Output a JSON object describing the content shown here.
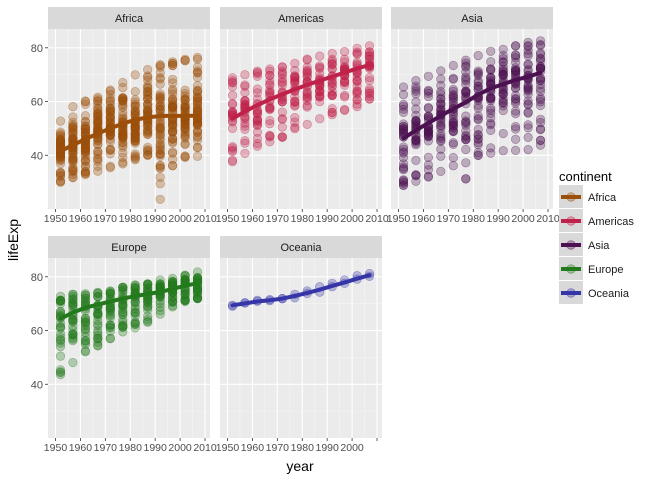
{
  "chart_data": {
    "type": "scatter",
    "facet_layout": "2 rows x 3 columns, shared axes",
    "xlabel": "year",
    "ylabel": "lifeExp",
    "xlim": [
      1947,
      2012
    ],
    "ylim": [
      20,
      87
    ],
    "x_ticks": [
      1950,
      1960,
      1970,
      1980,
      1990,
      2000,
      2010
    ],
    "y_ticks": [
      40,
      60,
      80
    ],
    "x_tick_labels_shown": [
      "1950",
      "1960",
      "1970",
      "1980",
      "1990",
      "2000",
      "2010"
    ],
    "x_tick_labels_oceania": [
      "1950",
      "1960",
      "1970",
      "1980",
      "1990",
      "2000"
    ],
    "y_tick_labels": [
      "40",
      "60",
      "80"
    ],
    "grid": true,
    "legend": {
      "title": "continent",
      "position": "right",
      "entries": [
        "Africa",
        "Americas",
        "Asia",
        "Europe",
        "Oceania"
      ]
    },
    "colors": {
      "Africa": "#9c4f0a",
      "Americas": "#c0214a",
      "Asia": "#4b1150",
      "Europe": "#237a1d",
      "Oceania": "#3535a8",
      "panel_bg": "#ebebeb",
      "strip_bg": "#d9d9d9",
      "legend_key_bg": "#d9d9d9"
    },
    "years": [
      1952,
      1957,
      1962,
      1967,
      1972,
      1977,
      1982,
      1987,
      1992,
      1997,
      2002,
      2007
    ],
    "series": [
      {
        "name": "Africa",
        "trend": [
          41.5,
          43.8,
          46.0,
          48.1,
          50.0,
          51.8,
          53.2,
          54.1,
          54.6,
          54.7,
          54.6,
          54.8
        ],
        "ranges": [
          [
            30.0,
            52.7
          ],
          [
            31.6,
            58.1
          ],
          [
            32.8,
            60.2
          ],
          [
            34.1,
            61.6
          ],
          [
            35.4,
            64.3
          ],
          [
            36.8,
            67.1
          ],
          [
            38.4,
            69.9
          ],
          [
            39.9,
            71.9
          ],
          [
            23.6,
            73.6
          ],
          [
            36.1,
            74.8
          ],
          [
            39.2,
            75.7
          ],
          [
            39.6,
            76.4
          ]
        ],
        "per_year": 52,
        "jitter": 0.62
      },
      {
        "name": "Americas",
        "trend": [
          53.6,
          56.3,
          58.7,
          60.8,
          62.7,
          64.5,
          66.2,
          67.8,
          69.3,
          70.8,
          72.3,
          73.6
        ],
        "ranges": [
          [
            37.6,
            68.8
          ],
          [
            40.7,
            70.0
          ],
          [
            43.4,
            71.3
          ],
          [
            45.0,
            72.1
          ],
          [
            46.7,
            72.9
          ],
          [
            49.9,
            74.2
          ],
          [
            51.5,
            75.8
          ],
          [
            53.6,
            76.9
          ],
          [
            55.1,
            77.9
          ],
          [
            56.7,
            78.6
          ],
          [
            58.1,
            79.8
          ],
          [
            60.9,
            80.7
          ]
        ],
        "per_year": 25,
        "jitter": 0.5
      },
      {
        "name": "Asia",
        "trend": [
          46.3,
          49.3,
          52.0,
          54.7,
          57.3,
          59.7,
          62.6,
          64.9,
          66.5,
          68.0,
          69.3,
          70.7
        ],
        "ranges": [
          [
            28.8,
            65.4
          ],
          [
            30.3,
            67.8
          ],
          [
            31.9,
            69.4
          ],
          [
            34.0,
            71.4
          ],
          [
            36.1,
            73.4
          ],
          [
            31.2,
            75.4
          ],
          [
            39.9,
            77.1
          ],
          [
            40.8,
            78.7
          ],
          [
            41.7,
            79.4
          ],
          [
            41.8,
            80.7
          ],
          [
            42.1,
            82.0
          ],
          [
            43.8,
            82.6
          ]
        ],
        "per_year": 33,
        "jitter": 0.55
      },
      {
        "name": "Europe",
        "trend": [
          64.4,
          66.7,
          68.5,
          69.7,
          70.8,
          71.9,
          72.8,
          73.6,
          74.4,
          75.5,
          76.7,
          77.6
        ],
        "ranges": [
          [
            43.6,
            72.7
          ],
          [
            48.1,
            73.5
          ],
          [
            52.1,
            73.7
          ],
          [
            54.3,
            74.2
          ],
          [
            57.0,
            74.7
          ],
          [
            59.5,
            76.1
          ],
          [
            61.0,
            76.9
          ],
          [
            63.1,
            77.4
          ],
          [
            66.1,
            78.8
          ],
          [
            68.8,
            79.4
          ],
          [
            70.8,
            80.6
          ],
          [
            71.8,
            81.8
          ]
        ],
        "per_year": 30,
        "jitter": 0.3
      },
      {
        "name": "Oceania",
        "points": [
          [
            1952,
            69.1
          ],
          [
            1952,
            69.4
          ],
          [
            1957,
            70.3
          ],
          [
            1957,
            70.3
          ],
          [
            1962,
            71.2
          ],
          [
            1962,
            70.9
          ],
          [
            1967,
            71.1
          ],
          [
            1967,
            71.5
          ],
          [
            1972,
            71.9
          ],
          [
            1972,
            71.9
          ],
          [
            1977,
            73.5
          ],
          [
            1977,
            72.2
          ],
          [
            1982,
            74.7
          ],
          [
            1982,
            73.8
          ],
          [
            1987,
            76.3
          ],
          [
            1987,
            74.3
          ],
          [
            1992,
            77.6
          ],
          [
            1992,
            76.3
          ],
          [
            1997,
            78.8
          ],
          [
            1997,
            77.6
          ],
          [
            2002,
            80.4
          ],
          [
            2002,
            79.1
          ],
          [
            2007,
            81.2
          ],
          [
            2007,
            80.2
          ]
        ],
        "trend": [
          69.4,
          70.1,
          70.8,
          71.3,
          71.9,
          72.9,
          74.0,
          75.2,
          76.6,
          77.9,
          79.3,
          80.6
        ]
      }
    ]
  }
}
